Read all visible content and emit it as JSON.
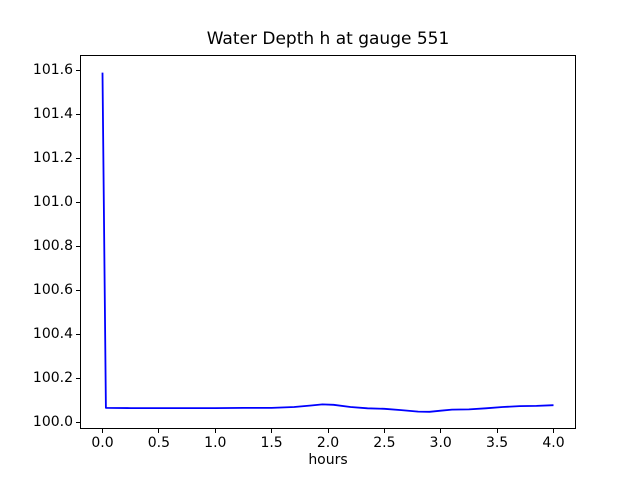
{
  "chart_data": {
    "type": "line",
    "title": "Water Depth h at gauge 551",
    "xlabel": "hours",
    "ylabel": "",
    "xlim": [
      -0.2,
      4.2
    ],
    "ylim": [
      99.97,
      101.67
    ],
    "x_ticks": [
      "0.0",
      "0.5",
      "1.0",
      "1.5",
      "2.0",
      "2.5",
      "3.0",
      "3.5",
      "4.0"
    ],
    "y_ticks": [
      "100.0",
      "100.2",
      "100.4",
      "100.6",
      "100.8",
      "101.0",
      "101.2",
      "101.4",
      "101.6"
    ],
    "grid": false,
    "legend": "none",
    "line_color": "#0000ff",
    "background_color": "#ffffff",
    "series": [
      {
        "name": "h",
        "x": [
          0.0,
          0.03,
          0.25,
          0.5,
          0.75,
          1.0,
          1.25,
          1.5,
          1.7,
          1.85,
          1.95,
          2.05,
          2.2,
          2.35,
          2.5,
          2.65,
          2.8,
          2.9,
          3.0,
          3.1,
          3.25,
          3.4,
          3.55,
          3.7,
          3.85,
          4.0
        ],
        "y": [
          101.59,
          100.066,
          100.065,
          100.065,
          100.065,
          100.065,
          100.066,
          100.066,
          100.07,
          100.077,
          100.082,
          100.08,
          100.07,
          100.064,
          100.062,
          100.056,
          100.049,
          100.048,
          100.053,
          100.058,
          100.059,
          100.064,
          100.07,
          100.074,
          100.075,
          100.078
        ]
      }
    ]
  }
}
